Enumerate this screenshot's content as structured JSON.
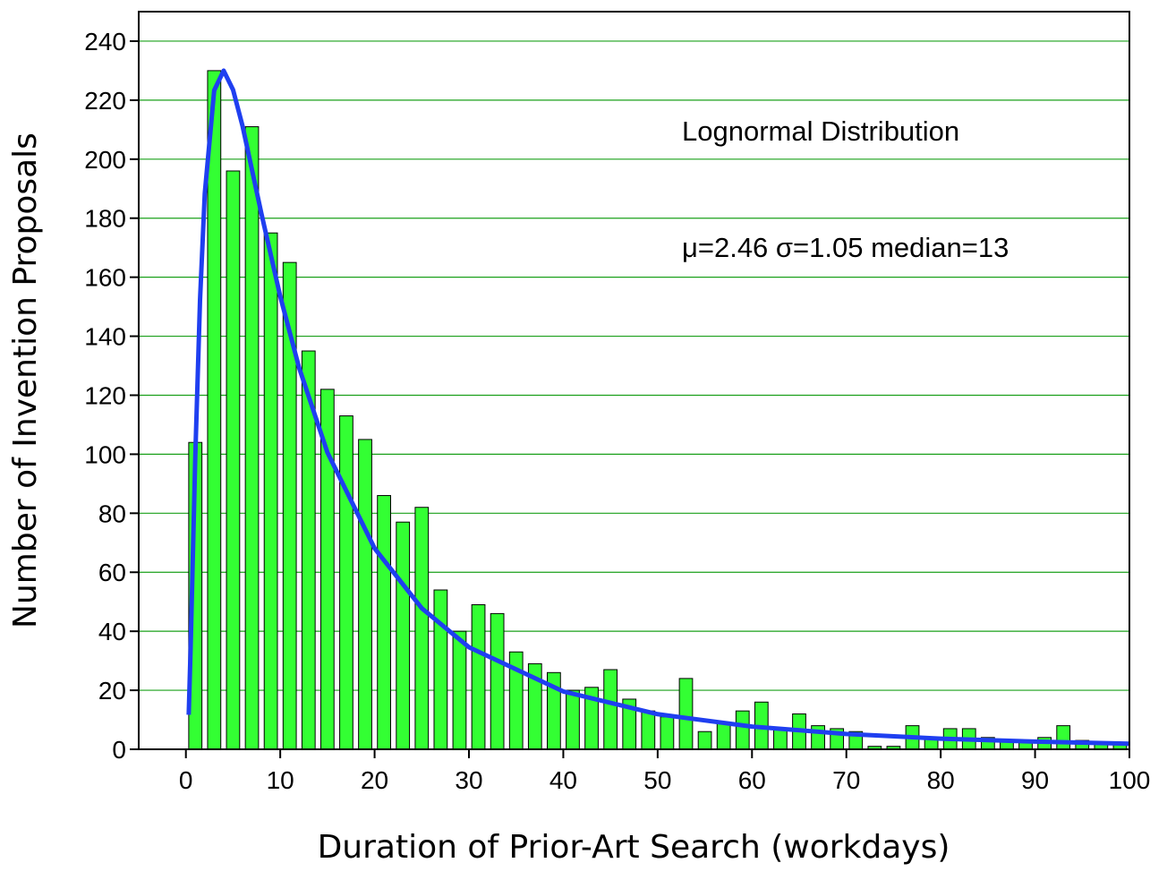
{
  "chart_data": {
    "type": "histogram",
    "x_label": "Duration of Prior-Art Search (workdays)",
    "y_label": "Number of Invention Proposals",
    "annotations": [
      "Lognormal Distribution",
      "μ=2.46   σ=1.05  median=13"
    ],
    "bins": [
      0,
      2,
      4,
      6,
      8,
      10,
      12,
      14,
      16,
      18,
      20,
      22,
      24,
      26,
      28,
      30,
      32,
      34,
      36,
      38,
      40,
      42,
      44,
      46,
      48,
      50,
      52,
      54,
      56,
      58,
      60,
      62,
      64,
      66,
      68,
      70,
      72,
      74,
      76,
      78,
      80,
      82,
      84,
      86,
      88,
      90,
      92,
      94,
      96,
      98,
      100
    ],
    "values": [
      104,
      230,
      196,
      211,
      175,
      165,
      135,
      122,
      113,
      105,
      86,
      77,
      82,
      54,
      40,
      49,
      46,
      33,
      29,
      26,
      20,
      21,
      27,
      17,
      13,
      11,
      24,
      6,
      9,
      13,
      16,
      7,
      12,
      8,
      7,
      6,
      1,
      1,
      8,
      4,
      7,
      7,
      4,
      3,
      3,
      4,
      8,
      3,
      2,
      2
    ],
    "color": "#33ff33",
    "edge_color": "#000000",
    "fit": {
      "color": "#1f3ff0",
      "x": [
        0.3,
        0.5,
        1,
        1.5,
        2,
        3,
        4,
        5,
        6,
        8,
        10,
        12,
        15,
        20,
        25,
        30,
        40,
        50,
        60,
        70,
        80,
        90,
        100
      ],
      "y": [
        11.7,
        34.2,
        99.8,
        152.4,
        188.3,
        223.3,
        230.0,
        223.5,
        211.3,
        181.6,
        153.5,
        129.3,
        100.6,
        68.1,
        47.8,
        34.6,
        19.6,
        11.9,
        7.7,
        5.2,
        3.6,
        2.6,
        1.9
      ]
    },
    "xlim": [
      -5,
      100
    ],
    "ylim": [
      0,
      250
    ],
    "xticks": [
      0,
      10,
      20,
      30,
      40,
      50,
      60,
      70,
      80,
      90,
      100
    ],
    "yticks": [
      0,
      20,
      40,
      60,
      80,
      100,
      120,
      140,
      160,
      180,
      200,
      220,
      240
    ],
    "grid": true,
    "grid_color": "#1aa01a"
  }
}
